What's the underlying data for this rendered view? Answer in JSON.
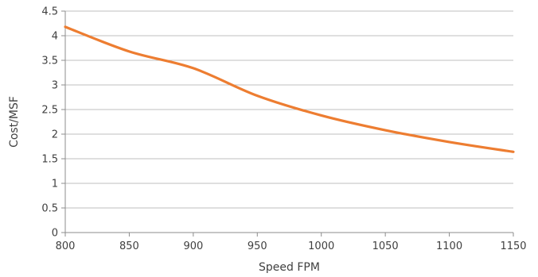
{
  "chart_data": {
    "type": "line",
    "title": "",
    "xlabel": "Speed FPM",
    "ylabel": "Cost/MSF",
    "x": [
      800,
      850,
      900,
      950,
      1000,
      1050,
      1100,
      1150
    ],
    "xlim": [
      800,
      1150
    ],
    "ylim": [
      0,
      4.5
    ],
    "x_ticks": [
      "800",
      "850",
      "900",
      "950",
      "1000",
      "1050",
      "1100",
      "1150"
    ],
    "y_ticks": [
      "0",
      "0.5",
      "1",
      "1.5",
      "2",
      "2.5",
      "3",
      "3.5",
      "4",
      "4.5"
    ],
    "grid": "horizontal",
    "legend": "none",
    "series": [
      {
        "color": "#ed7d31",
        "values": [
          4.18,
          3.68,
          3.34,
          2.78,
          2.38,
          2.08,
          1.84,
          1.64
        ]
      }
    ]
  }
}
